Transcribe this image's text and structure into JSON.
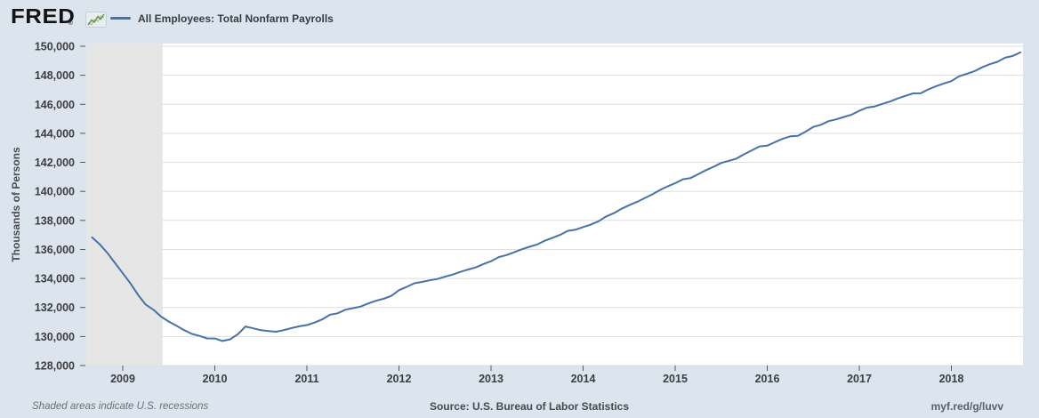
{
  "header": {
    "logo_text": "FRED",
    "registered_mark": "®",
    "series_title": "All Employees: Total Nonfarm Payrolls"
  },
  "footer": {
    "note": "Shaded areas indicate U.S. recessions",
    "source": "Source: U.S. Bureau of Labor Statistics",
    "short_url": "myf.red/g/luvv"
  },
  "chart_data": {
    "type": "line",
    "title": "All Employees: Total Nonfarm Payrolls",
    "ylabel": "Thousands of Persons",
    "units": "Thousands of Persons",
    "frequency": "monthly",
    "line_color": "#4573a7",
    "grid": "horizontal-only",
    "legend_position": "top-left-of-title",
    "ylim": [
      128000,
      150200
    ],
    "y_ticks": [
      128000,
      130000,
      132000,
      134000,
      136000,
      138000,
      140000,
      142000,
      144000,
      146000,
      148000,
      150000
    ],
    "x_tick_labels": [
      "2009",
      "2010",
      "2011",
      "2012",
      "2013",
      "2014",
      "2015",
      "2016",
      "2017",
      "2018"
    ],
    "x_start": {
      "year": 2008,
      "month": 9
    },
    "x_end": {
      "year": 2018,
      "month": 10
    },
    "recession_shading": {
      "start": "2008-09",
      "end": "2009-06",
      "color": "#e6e6e6"
    },
    "values": [
      136830,
      136350,
      135755,
      135055,
      134360,
      133660,
      132860,
      132190,
      131840,
      131370,
      131030,
      130740,
      130440,
      130180,
      130040,
      129870,
      129860,
      129690,
      129810,
      130160,
      130690,
      130560,
      130430,
      130380,
      130330,
      130440,
      130580,
      130700,
      130790,
      130960,
      131180,
      131500,
      131600,
      131840,
      131950,
      132060,
      132280,
      132460,
      132600,
      132800,
      133190,
      133420,
      133670,
      133760,
      133870,
      133960,
      134120,
      134270,
      134450,
      134610,
      134760,
      134990,
      135190,
      135470,
      135610,
      135800,
      136010,
      136180,
      136340,
      136600,
      136800,
      137000,
      137280,
      137360,
      137540,
      137710,
      137940,
      138270,
      138500,
      138800,
      139050,
      139270,
      139530,
      139790,
      140090,
      140340,
      140560,
      140830,
      140920,
      141180,
      141460,
      141690,
      141960,
      142110,
      142260,
      142560,
      142830,
      143100,
      143150,
      143390,
      143620,
      143790,
      143830,
      144120,
      144440,
      144590,
      144840,
      144960,
      145130,
      145290,
      145550,
      145770,
      145850,
      146030,
      146190,
      146400,
      146580,
      146750,
      146760,
      147030,
      147250,
      147430,
      147600,
      147930,
      148100,
      148280,
      148550,
      148760,
      148930,
      149210,
      149330,
      149580
    ]
  }
}
